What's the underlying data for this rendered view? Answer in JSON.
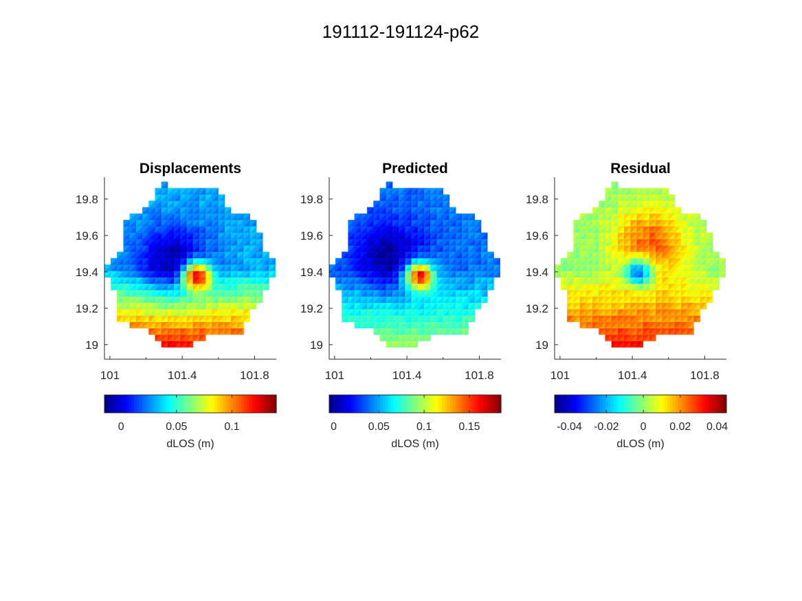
{
  "figure_title": "191112-191124-p62",
  "colormap": "jet",
  "chart_data": [
    {
      "type": "heatmap",
      "title": "Displacements",
      "x_ticks": [
        "101",
        "101.4",
        "101.8"
      ],
      "y_ticks": [
        "19.8",
        "19.6",
        "19.4",
        "19.2",
        "19"
      ],
      "xlim": [
        100.97,
        101.92
      ],
      "ylim": [
        18.92,
        19.92
      ],
      "colorbar": {
        "label": "dLOS (m)",
        "ticks": [
          "0",
          "0.05",
          "0.1"
        ],
        "tick_values": [
          0,
          0.05,
          0.1
        ],
        "clim": [
          -0.015,
          0.14
        ]
      },
      "field": {
        "source": [
          101.48,
          19.38
        ],
        "peak": 0.14,
        "low_center": [
          101.35,
          19.45
        ],
        "low": -0.01,
        "background": 0.03,
        "south_gradient": 0.1
      }
    },
    {
      "type": "heatmap",
      "title": "Predicted",
      "x_ticks": [
        "101",
        "101.4",
        "101.8"
      ],
      "y_ticks": [
        "19.8",
        "19.6",
        "19.4",
        "19.2",
        "19"
      ],
      "xlim": [
        100.97,
        101.92
      ],
      "ylim": [
        18.92,
        19.92
      ],
      "colorbar": {
        "label": "dLOS (m)",
        "ticks": [
          "0",
          "0.05",
          "0.1",
          "0.15"
        ],
        "tick_values": [
          0,
          0.05,
          0.1,
          0.15
        ],
        "clim": [
          -0.005,
          0.185
        ]
      },
      "field": {
        "source": [
          101.47,
          19.38
        ],
        "peak": 0.17,
        "low_center": [
          101.3,
          19.48
        ],
        "low": 0.0,
        "background": 0.04,
        "south_gradient": 0.06
      }
    },
    {
      "type": "heatmap",
      "title": "Residual",
      "x_ticks": [
        "101",
        "101.4",
        "101.8"
      ],
      "y_ticks": [
        "19.8",
        "19.6",
        "19.4",
        "19.2",
        "19"
      ],
      "xlim": [
        100.97,
        101.92
      ],
      "ylim": [
        18.92,
        19.92
      ],
      "colorbar": {
        "label": "dLOS (m)",
        "ticks": [
          "-0.04",
          "-0.02",
          "0",
          "0.02",
          "0.04"
        ],
        "tick_values": [
          -0.04,
          -0.02,
          0,
          0.02,
          0.04
        ],
        "clim": [
          -0.048,
          0.045
        ]
      },
      "field": {
        "source": [
          101.44,
          19.4
        ],
        "peak": -0.04,
        "low_center": [
          101.5,
          19.55
        ],
        "low": 0.025,
        "background": 0.0,
        "south_gradient": 0.035
      }
    }
  ]
}
